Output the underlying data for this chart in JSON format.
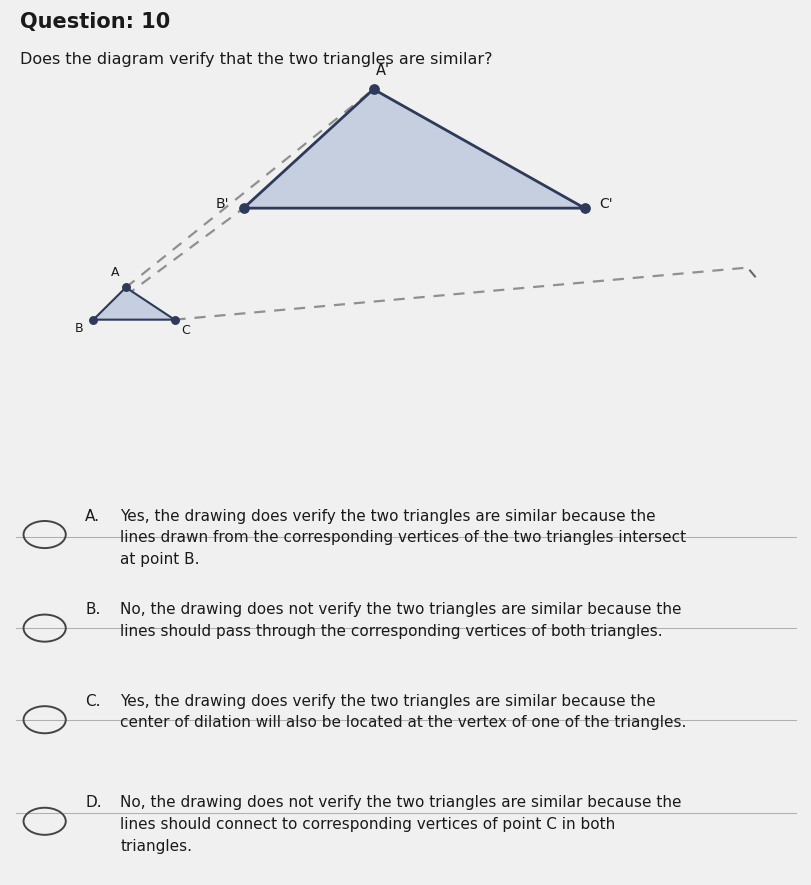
{
  "title": "Question: 10",
  "subtitle": "Does the diagram verify that the two triangles are similar?",
  "bg_color": "#f0f0f0",
  "triangle_large": {
    "A_prime": [
      0.46,
      0.82
    ],
    "B_prime": [
      0.3,
      0.58
    ],
    "C_prime": [
      0.72,
      0.58
    ],
    "color": "#2d3a5a",
    "fill": "#c5cfe0",
    "linewidth": 2.0
  },
  "triangle_small": {
    "A": [
      0.155,
      0.42
    ],
    "B": [
      0.115,
      0.355
    ],
    "C": [
      0.215,
      0.355
    ],
    "color": "#2d3a5a",
    "fill": "#c5cfe0",
    "linewidth": 1.5
  },
  "C_ext": [
    0.92,
    0.46
  ],
  "choices": [
    {
      "letter": "A.",
      "text": "Yes, the drawing does verify the two triangles are similar because the\nlines drawn from the corresponding vertices of the two triangles intersect\nat point B."
    },
    {
      "letter": "B.",
      "text": "No, the drawing does not verify the two triangles are similar because the\nlines should pass through the corresponding vertices of both triangles."
    },
    {
      "letter": "C.",
      "text": "Yes, the drawing does verify the two triangles are similar because the\ncenter of dilation will also be located at the vertex of one of the triangles."
    },
    {
      "letter": "D.",
      "text": "No, the drawing does not verify the two triangles are similar because the\nlines should connect to corresponding vertices of point C in both\ntriangles."
    }
  ],
  "text_color": "#1a1a1a",
  "title_fontsize": 15,
  "subtitle_fontsize": 11.5,
  "choice_fontsize": 11,
  "letter_fontsize": 11,
  "dashed_color": "#909090",
  "dashed_lw": 1.6
}
